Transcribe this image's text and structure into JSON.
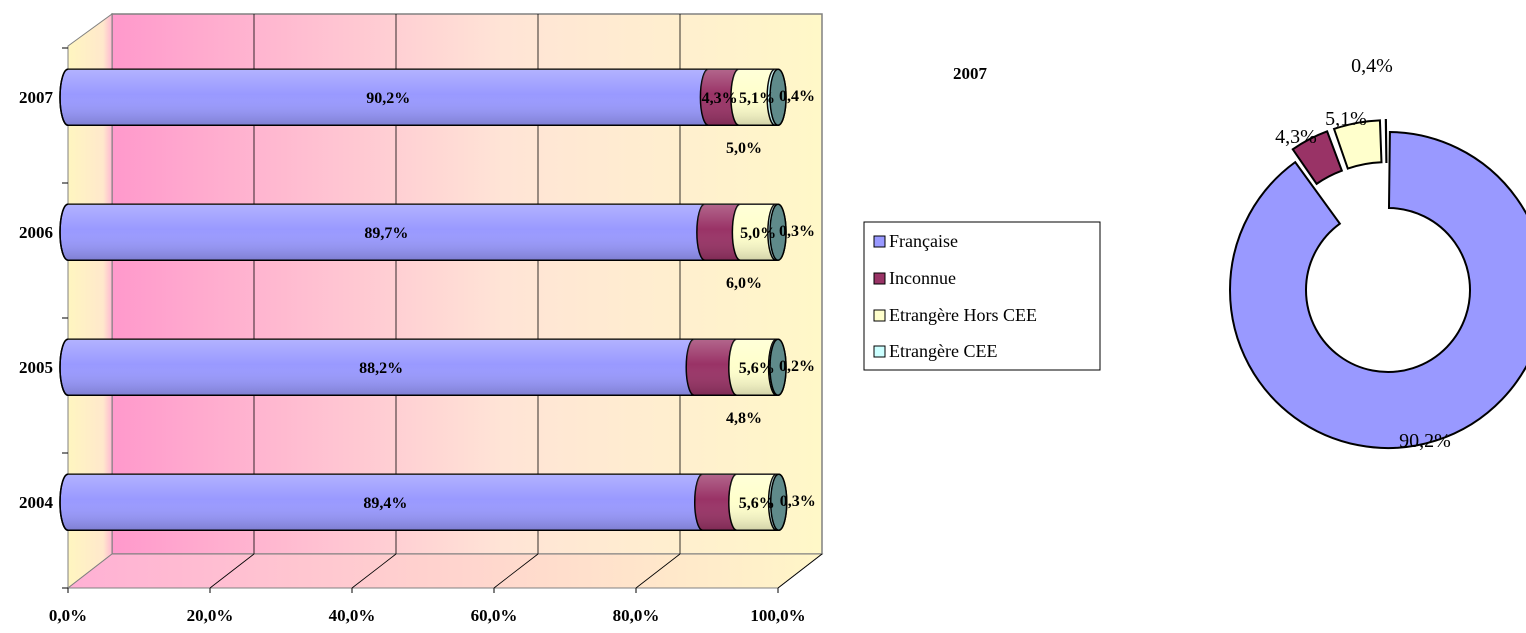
{
  "chart_data": [
    {
      "type": "bar",
      "orientation": "horizontal",
      "stacked": true,
      "style": "3d-cylinder",
      "categories": [
        "2004",
        "2005",
        "2006",
        "2007"
      ],
      "series": [
        {
          "name": "Française",
          "values": [
            89.4,
            88.2,
            89.7,
            90.2
          ],
          "labels": [
            "89,4%",
            "88,2%",
            "89,7%",
            "90,2%"
          ]
        },
        {
          "name": "Inconnue",
          "values": [
            4.8,
            6.0,
            5.0,
            4.3
          ],
          "labels": [
            "4,8%",
            "6,0%",
            "5,0%",
            "4,3%"
          ]
        },
        {
          "name": "Etrangère Hors CEE",
          "values": [
            5.6,
            5.6,
            5.0,
            5.1
          ],
          "labels": [
            "5,6%",
            "5,6%",
            "5,0%",
            "5,1%"
          ]
        },
        {
          "name": "Etrangère CEE",
          "values": [
            0.3,
            0.2,
            0.3,
            0.4
          ],
          "labels": [
            "0,3%",
            "0,2%",
            "0,3%",
            "0,4%"
          ]
        }
      ],
      "x_ticks": [
        "0,0%",
        "20,0%",
        "40,0%",
        "60,0%",
        "80,0%",
        "100,0%"
      ],
      "xlim": [
        0,
        100
      ],
      "grid": true,
      "legend": "right"
    },
    {
      "type": "pie",
      "variant": "exploded-doughnut",
      "title": "2007",
      "slices": [
        {
          "name": "Française",
          "value": 90.2,
          "label": "90,2%"
        },
        {
          "name": "Inconnue",
          "value": 4.3,
          "label": "4,3%"
        },
        {
          "name": "Etrangère Hors CEE",
          "value": 5.1,
          "label": "5,1%"
        },
        {
          "name": "Etrangère CEE",
          "value": 0.4,
          "label": "0,4%"
        }
      ]
    }
  ],
  "legend": {
    "items": [
      {
        "label": "Française"
      },
      {
        "label": "Inconnue"
      },
      {
        "label": "Etrangère Hors CEE"
      },
      {
        "label": "Etrangère CEE"
      }
    ]
  },
  "colors": {
    "francaise": "#9999FF",
    "inconnue": "#993366",
    "hors_cee": "#FFFFCC",
    "cee": "#CCFFFF",
    "cap": "#5F8A8A",
    "wall_pink": "#FF99CC",
    "wall_cream": "#FFF8C8"
  }
}
